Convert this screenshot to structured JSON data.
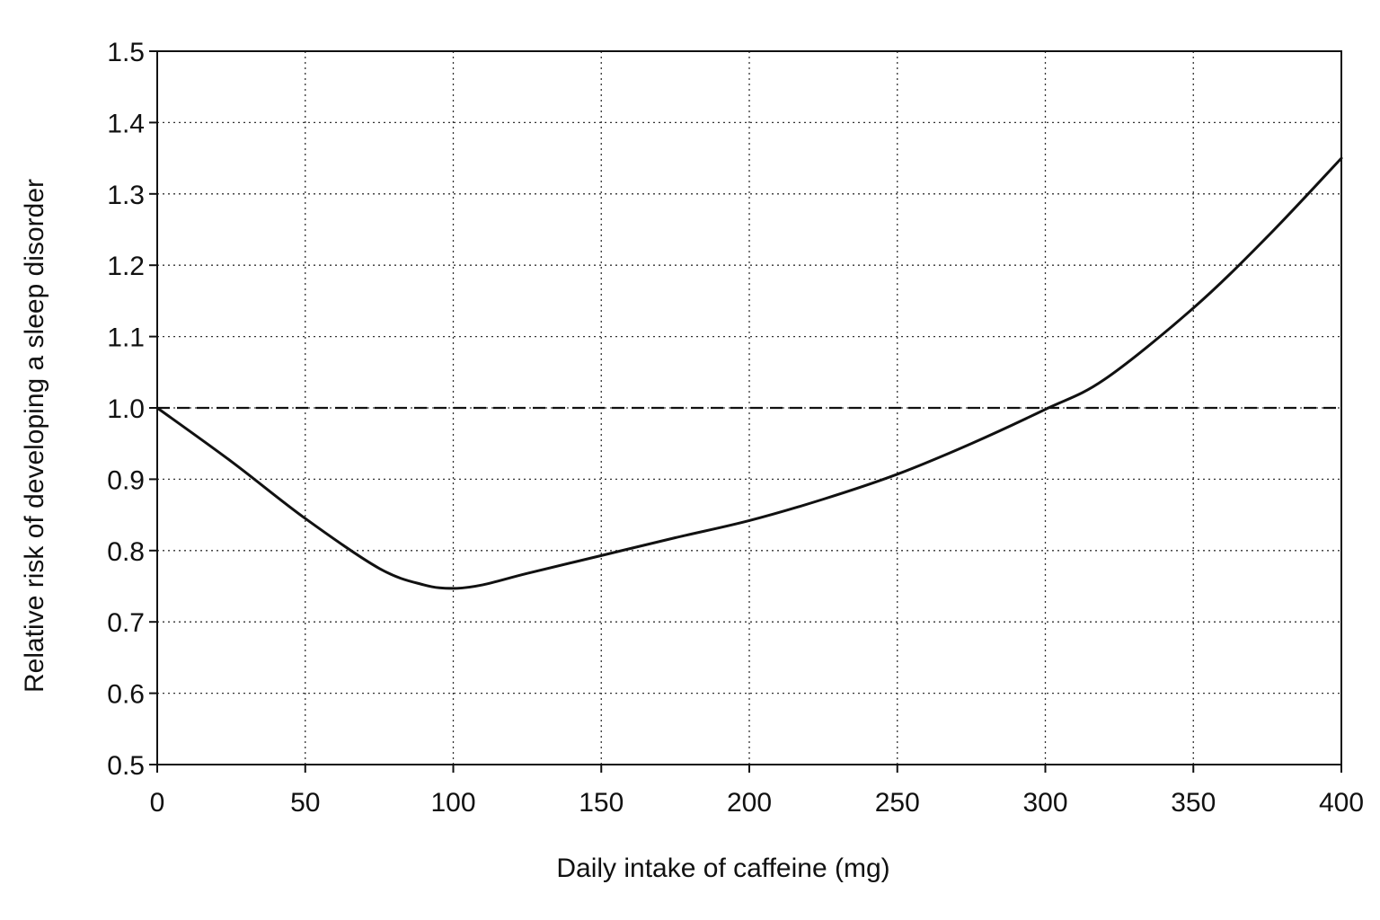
{
  "chart_data": {
    "type": "line",
    "title": "",
    "xlabel": "Daily intake of caffeine (mg)",
    "ylabel": "Relative risk of developing a sleep disorder",
    "xlim": [
      0,
      400
    ],
    "ylim": [
      0.5,
      1.5
    ],
    "x_ticks": [
      "0",
      "50",
      "100",
      "150",
      "200",
      "250",
      "300",
      "350",
      "400"
    ],
    "y_ticks": [
      "0.5",
      "0.6",
      "0.7",
      "0.8",
      "0.9",
      "1.0",
      "1.1",
      "1.2",
      "1.3",
      "1.4",
      "1.5"
    ],
    "grid": true,
    "reference_line": {
      "y": 1.0,
      "style": "dashed"
    },
    "series": [
      {
        "x": [
          0,
          25,
          50,
          75,
          90,
          100,
          110,
          125,
          150,
          175,
          200,
          225,
          250,
          275,
          300,
          320,
          350,
          375,
          400
        ],
        "y": [
          1.0,
          0.925,
          0.845,
          0.775,
          0.752,
          0.747,
          0.752,
          0.768,
          0.793,
          0.818,
          0.842,
          0.872,
          0.907,
          0.95,
          0.998,
          1.04,
          1.14,
          1.24,
          1.35
        ]
      }
    ]
  }
}
